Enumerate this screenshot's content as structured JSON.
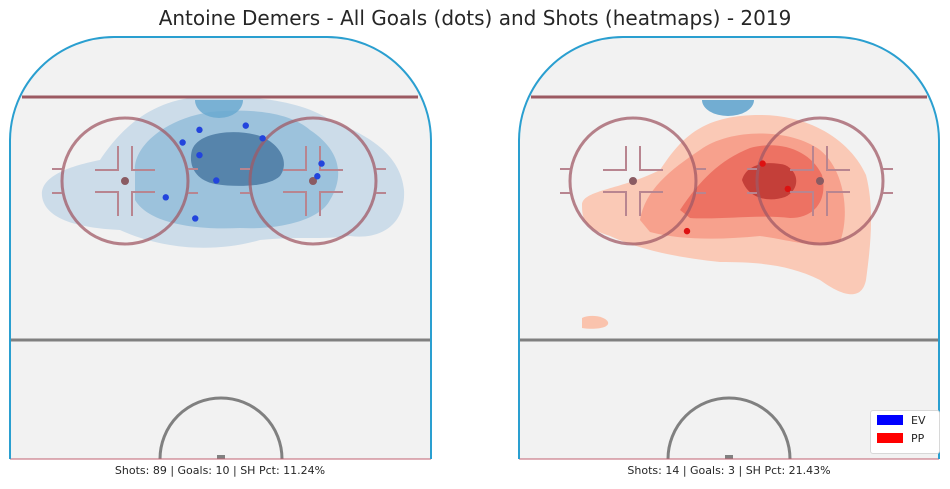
{
  "title": "Antoine Demers - All Goals (dots) and Shots (heatmaps) - 2019",
  "colors": {
    "ev": "#0000ff",
    "pp": "#ff0000",
    "rink_board": "#2a9fd0",
    "blue_line": "#9c5a62",
    "center_line": "#808080",
    "ice": "#f2f2f2"
  },
  "chart_data": [
    {
      "type": "heatmap",
      "panel": "left",
      "situation": "EV",
      "caption": "Shots: 89 | Goals: 10 | SH Pct: 11.24%",
      "stats": {
        "shots": 89,
        "goals": 10,
        "sh_pct": 11.24
      },
      "heatmap_color": "blue",
      "goals": [
        {
          "x": 0.45,
          "y": 0.22
        },
        {
          "x": 0.41,
          "y": 0.25
        },
        {
          "x": 0.45,
          "y": 0.28
        },
        {
          "x": 0.56,
          "y": 0.21
        },
        {
          "x": 0.6,
          "y": 0.24
        },
        {
          "x": 0.37,
          "y": 0.38
        },
        {
          "x": 0.44,
          "y": 0.43
        },
        {
          "x": 0.74,
          "y": 0.3
        },
        {
          "x": 0.73,
          "y": 0.33
        },
        {
          "x": 0.49,
          "y": 0.34
        }
      ]
    },
    {
      "type": "heatmap",
      "panel": "right",
      "situation": "PP",
      "caption": "Shots: 14 | Goals: 3 | SH Pct: 21.43%",
      "stats": {
        "shots": 14,
        "goals": 3,
        "sh_pct": 21.43
      },
      "heatmap_color": "red",
      "goals": [
        {
          "x": 0.58,
          "y": 0.3
        },
        {
          "x": 0.64,
          "y": 0.36
        },
        {
          "x": 0.4,
          "y": 0.46
        }
      ]
    }
  ],
  "legend": [
    {
      "label": "EV",
      "color": "#0000ff"
    },
    {
      "label": "PP",
      "color": "#ff0000"
    }
  ]
}
